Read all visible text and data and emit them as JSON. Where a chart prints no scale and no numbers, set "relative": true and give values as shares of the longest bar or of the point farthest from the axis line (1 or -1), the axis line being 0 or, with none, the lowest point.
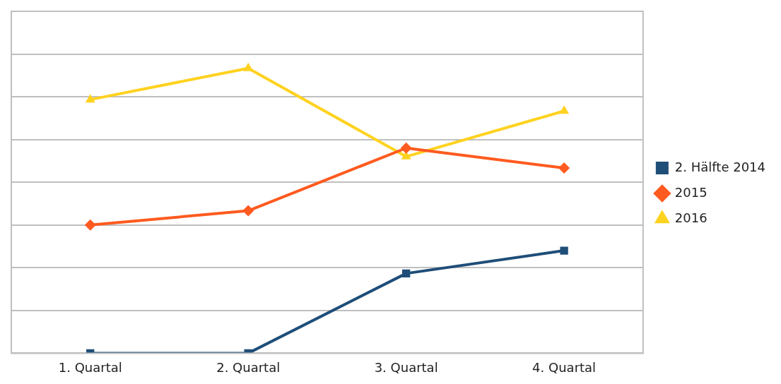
{
  "chart_data": {
    "type": "line",
    "relative": true,
    "categories": [
      "1. Quartal",
      "2. Quartal",
      "3. Quartal",
      "4. Quartal"
    ],
    "series": [
      {
        "name": "2. Hälfte 2014",
        "color": "#1f4e79",
        "marker": "square",
        "values": [
          0,
          0,
          0.28,
          0.36
        ]
      },
      {
        "name": "2015",
        "color": "#ff5a1f",
        "marker": "diamond",
        "values": [
          0.45,
          0.5,
          0.72,
          0.65
        ]
      },
      {
        "name": "2016",
        "color": "#ffd21f",
        "marker": "triangle",
        "values": [
          0.89,
          1,
          0.69,
          0.85
        ]
      }
    ],
    "grid": "y",
    "legend": "right"
  }
}
